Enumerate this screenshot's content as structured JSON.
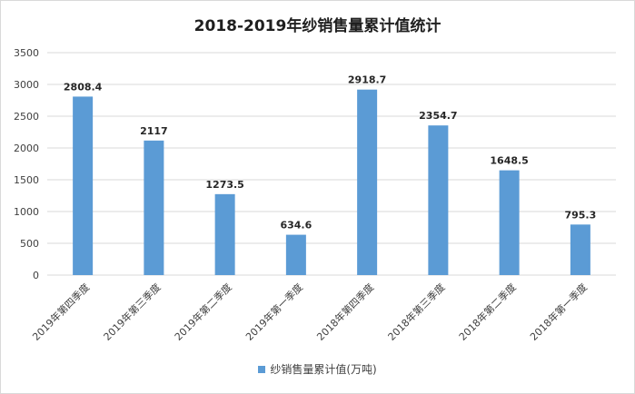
{
  "chart_data": {
    "type": "bar",
    "title": "2018-2019年纱销售量累计值统计",
    "categories": [
      "2019年第四季度",
      "2019年第三季度",
      "2019年第二季度",
      "2019年第一季度",
      "2018年第四季度",
      "2018年第三季度",
      "2018年第二季度",
      "2018年第一季度"
    ],
    "series": [
      {
        "name": "纱销售量累计值(万吨)",
        "values": [
          2808.4,
          2117,
          1273.5,
          634.6,
          2918.7,
          2354.7,
          1648.5,
          795.3
        ]
      }
    ],
    "data_labels": [
      "2808.4",
      "2117",
      "1273.5",
      "634.6",
      "2918.7",
      "2354.7",
      "1648.5",
      "795.3"
    ],
    "y_ticks": [
      0,
      500,
      1000,
      1500,
      2000,
      2500,
      3000,
      3500
    ],
    "ylim": [
      0,
      3500
    ],
    "grid": true,
    "legend_position": "bottom",
    "bar_color": "#5b9bd5",
    "grid_color": "#d9d9d9"
  }
}
